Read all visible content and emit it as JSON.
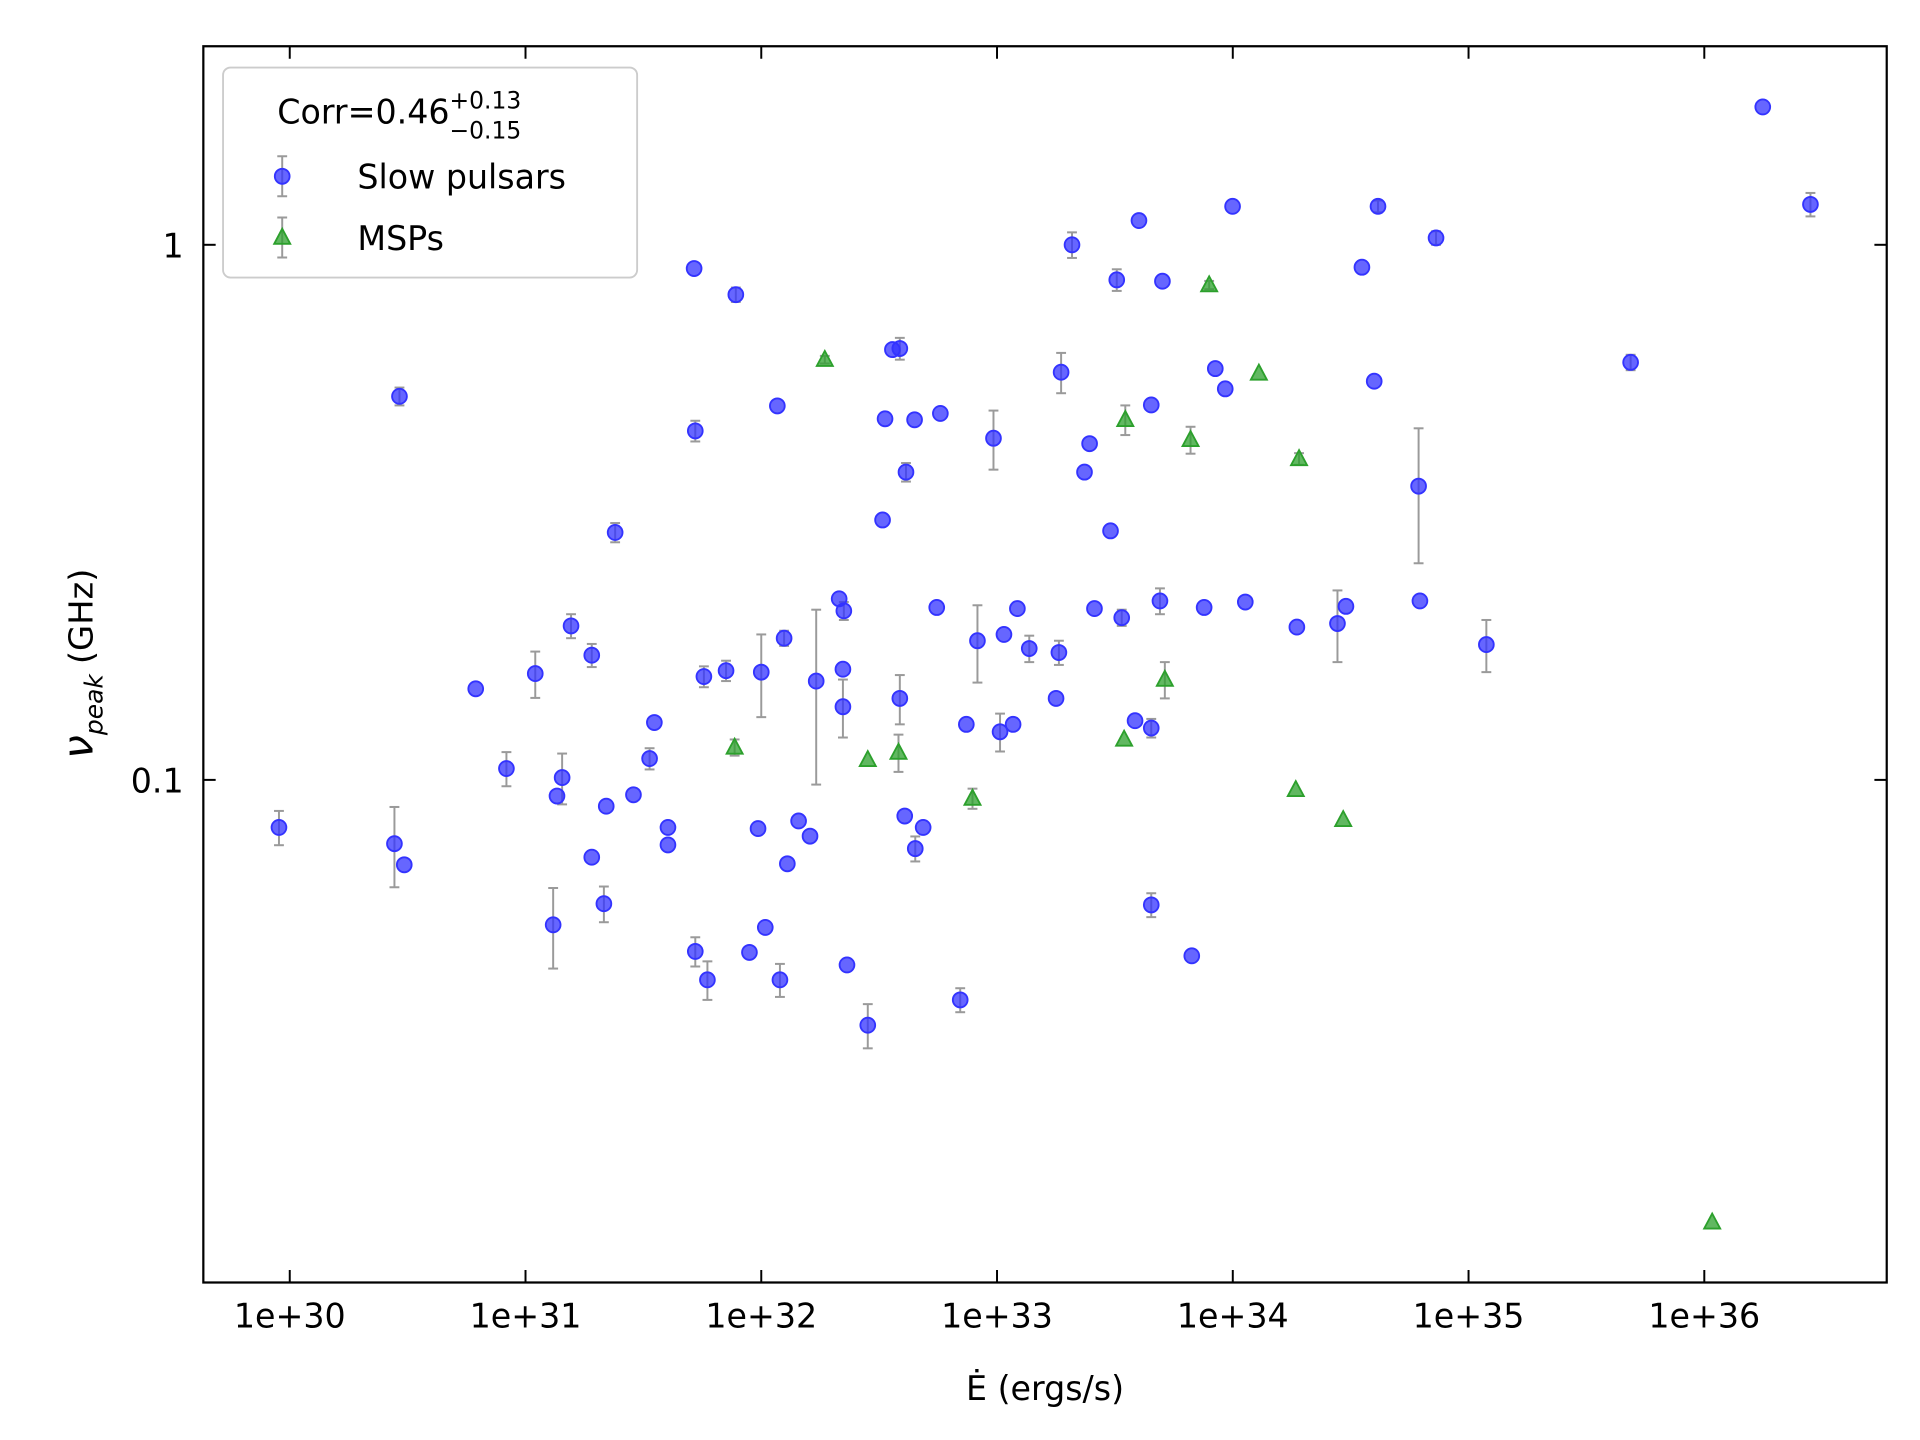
{
  "chart_data": {
    "type": "scatter",
    "xlabel": "Ė (ergs/s)",
    "ylabel": {
      "symbol": "ν",
      "subscript": "peak",
      "unit": "(GHz)"
    },
    "legend_title": {
      "text": "Corr=0.46",
      "upper": "+0.13",
      "lower": "−0.15"
    },
    "legend_loc": "upper left",
    "log_x": true,
    "log_y": true,
    "xlim": [
      4.3e+29,
      5.94e+36
    ],
    "ylim": [
      0.0115,
      2.35
    ],
    "xticks": [
      {
        "value": 1e+30,
        "label": "1e+30"
      },
      {
        "value": 1e+31,
        "label": "1e+31"
      },
      {
        "value": 1e+32,
        "label": "1e+32"
      },
      {
        "value": 1e+33,
        "label": "1e+33"
      },
      {
        "value": 1e+34,
        "label": "1e+34"
      },
      {
        "value": 1e+35,
        "label": "1e+35"
      },
      {
        "value": 1e+36,
        "label": "1e+36"
      }
    ],
    "yticks": [
      0.1,
      1
    ],
    "errorbar_color": "#9a9a9a",
    "series": [
      {
        "name": "Slow pulsars",
        "color": "#3333ff",
        "marker": "circle",
        "x": [
          9e+29,
          2.78e+30,
          2.92e+30,
          3.06e+30,
          6.15e+30,
          8.3e+30,
          1.1e+31,
          1.31e+31,
          1.36e+31,
          1.43e+31,
          1.56e+31,
          1.91e+31,
          1.91e+31,
          2.15e+31,
          2.2e+31,
          2.4e+31,
          2.87e+31,
          3.36e+31,
          3.52e+31,
          4.02e+31,
          4.02e+31,
          5.25e+31,
          5.19e+31,
          5.25e+31,
          5.71e+31,
          5.91e+31,
          7.09e+31,
          7.8e+31,
          8.91e+31,
          9.69e+31,
          1e+32,
          1.04e+32,
          1.17e+32,
          1.2e+32,
          1.25e+32,
          1.29e+32,
          1.44e+32,
          1.61e+32,
          1.71e+32,
          2.14e+32,
          2.22e+32,
          2.24e+32,
          2.22e+32,
          2.31e+32,
          2.83e+32,
          3.27e+32,
          3.35e+32,
          3.6e+32,
          3.87e+32,
          3.87e+32,
          4.06e+32,
          4.11e+32,
          4.47e+32,
          4.5e+32,
          4.86e+32,
          5.55e+32,
          5.75e+32,
          6.98e+32,
          7.41e+32,
          8.26e+32,
          9.66e+32,
          1.03e+33,
          1.07e+33,
          1.17e+33,
          1.22e+33,
          1.37e+33,
          1.78e+33,
          1.83e+33,
          1.87e+33,
          2.08e+33,
          2.35e+33,
          2.47e+33,
          2.59e+33,
          3.03e+33,
          3.22e+33,
          3.38e+33,
          3.85e+33,
          4e+33,
          4.51e+33,
          4.51e+33,
          4.51e+33,
          4.91e+33,
          5.03e+33,
          6.7e+33,
          7.56e+33,
          8.43e+33,
          9.29e+33,
          9.98e+33,
          1.13e+34,
          1.87e+34,
          2.78e+34,
          3.02e+34,
          3.53e+34,
          3.98e+34,
          4.13e+34,
          6.14e+34,
          6.22e+34,
          7.28e+34,
          1.19e+35,
          4.87e+35,
          1.77e+36,
          2.82e+36
        ],
        "values": [
          0.0815,
          0.076,
          0.521,
          0.0694,
          0.148,
          0.105,
          0.158,
          0.0536,
          0.0933,
          0.101,
          0.194,
          0.0717,
          0.171,
          0.0587,
          0.0893,
          0.29,
          0.0938,
          0.1096,
          0.128,
          0.0815,
          0.0756,
          0.449,
          0.903,
          0.0478,
          0.156,
          0.0423,
          0.16,
          0.807,
          0.0476,
          0.0811,
          0.159,
          0.053,
          0.5,
          0.0423,
          0.184,
          0.0697,
          0.0838,
          0.0785,
          0.153,
          0.218,
          0.161,
          0.207,
          0.137,
          0.0451,
          0.0348,
          0.306,
          0.473,
          0.637,
          0.64,
          0.142,
          0.0856,
          0.376,
          0.471,
          0.0744,
          0.0815,
          0.21,
          0.484,
          0.0388,
          0.127,
          0.182,
          0.435,
          0.123,
          0.187,
          0.127,
          0.209,
          0.176,
          0.142,
          0.173,
          0.578,
          1.0,
          0.376,
          0.425,
          0.209,
          0.292,
          0.86,
          0.201,
          0.129,
          1.11,
          0.0584,
          0.125,
          0.502,
          0.216,
          0.855,
          0.0469,
          0.21,
          0.587,
          0.538,
          1.18,
          0.215,
          0.193,
          0.196,
          0.211,
          0.908,
          0.556,
          1.18,
          0.354,
          0.216,
          1.03,
          0.179,
          0.603,
          1.81,
          1.19
        ],
        "yerr": [
          0.006,
          0.013,
          0.02,
          null,
          null,
          0.0077,
          0.0157,
          0.0092,
          null,
          0.011,
          0.01,
          null,
          0.0085,
          0.0045,
          null,
          0.012,
          null,
          0.005,
          null,
          null,
          null,
          0.02,
          null,
          0.003,
          0.007,
          0.0035,
          0.007,
          0.025,
          null,
          null,
          0.028,
          null,
          null,
          0.003,
          0.006,
          null,
          null,
          null,
          0.055,
          null,
          null,
          0.008,
          0.017,
          null,
          0.0033,
          null,
          null,
          null,
          0.03,
          0.015,
          null,
          0.015,
          null,
          0.004,
          null,
          null,
          null,
          0.002,
          null,
          0.03,
          0.055,
          0.01,
          null,
          null,
          null,
          0.01,
          null,
          0.009,
          0.05,
          0.055,
          null,
          null,
          null,
          null,
          0.04,
          0.007,
          null,
          null,
          0.003,
          0.005,
          null,
          0.012,
          null,
          null,
          null,
          null,
          null,
          null,
          null,
          null,
          0.03,
          null,
          null,
          null,
          0.03,
          0.1,
          null,
          0.03,
          0.02,
          0.02,
          null,
          0.06
        ]
      },
      {
        "name": "MSPs",
        "color": "#2ca02c",
        "marker": "triangle",
        "x": [
          7.71e+31,
          1.86e+32,
          2.83e+32,
          3.82e+32,
          7.87e+32,
          3.46e+33,
          3.5e+33,
          5.15e+33,
          6.62e+33,
          7.94e+33,
          1.29e+34,
          1.85e+34,
          1.91e+34,
          2.94e+34,
          1.08e+36
        ],
        "values": [
          0.115,
          0.61,
          0.109,
          0.1125,
          0.0923,
          0.119,
          0.471,
          0.154,
          0.432,
          0.841,
          0.575,
          0.0958,
          0.398,
          0.0842,
          0.0149
        ],
        "yerr": [
          0.004,
          0.01,
          null,
          0.009,
          0.004,
          null,
          0.03,
          0.012,
          0.025,
          0.015,
          null,
          null,
          0.01,
          null,
          null
        ]
      }
    ]
  }
}
